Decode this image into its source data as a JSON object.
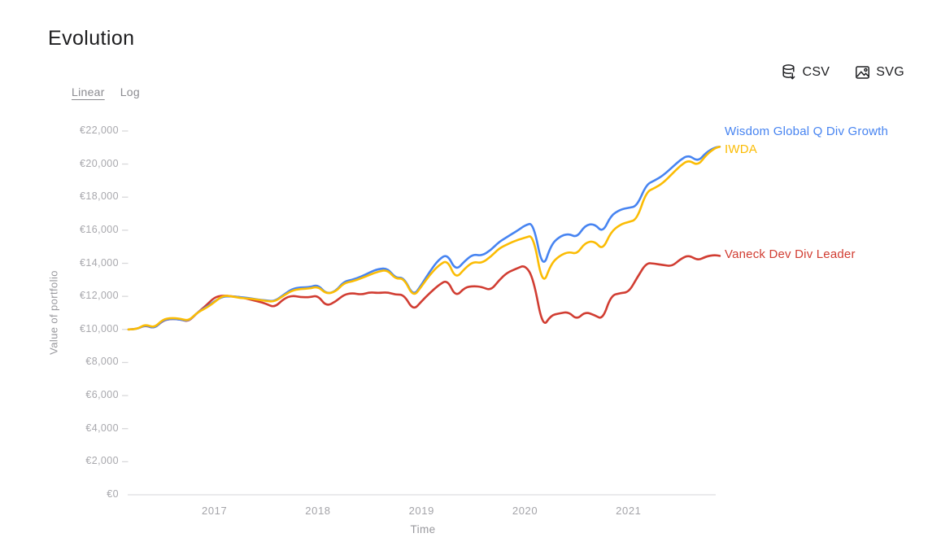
{
  "page": {
    "title": "Evolution"
  },
  "toolbar": {
    "csv": {
      "label": "CSV"
    },
    "svg": {
      "label": "SVG"
    }
  },
  "scale_toggle": {
    "options": [
      {
        "label": "Linear",
        "active": true
      },
      {
        "label": "Log",
        "active": false
      }
    ]
  },
  "chart_data": {
    "type": "line",
    "title": "Evolution",
    "xlabel": "Time",
    "ylabel": "Value of portfolio",
    "currency": "EUR",
    "xlim": [
      2016.17,
      2021.92
    ],
    "ylim": [
      0,
      22000
    ],
    "grid": false,
    "legend_position": "end-of-line",
    "x_axis": {
      "ticks": [
        2017,
        2018,
        2019,
        2020,
        2021
      ]
    },
    "y_axis": {
      "ticks": [
        {
          "value": 0,
          "label": "€0"
        },
        {
          "value": 2000,
          "label": "€2,000"
        },
        {
          "value": 4000,
          "label": "€4,000"
        },
        {
          "value": 6000,
          "label": "€6,000"
        },
        {
          "value": 8000,
          "label": "€8,000"
        },
        {
          "value": 10000,
          "label": "€10,000"
        },
        {
          "value": 12000,
          "label": "€12,000"
        },
        {
          "value": 14000,
          "label": "€14,000"
        },
        {
          "value": 16000,
          "label": "€16,000"
        },
        {
          "value": 18000,
          "label": "€18,000"
        },
        {
          "value": 20000,
          "label": "€20,000"
        },
        {
          "value": 22000,
          "label": "€22,000"
        }
      ]
    },
    "x": [
      2016.17,
      2016.25,
      2016.33,
      2016.42,
      2016.5,
      2016.58,
      2016.67,
      2016.75,
      2016.83,
      2016.92,
      2017,
      2017.08,
      2017.17,
      2017.25,
      2017.33,
      2017.42,
      2017.5,
      2017.58,
      2017.67,
      2017.75,
      2017.83,
      2017.92,
      2018,
      2018.08,
      2018.17,
      2018.25,
      2018.33,
      2018.42,
      2018.5,
      2018.58,
      2018.67,
      2018.75,
      2018.83,
      2018.92,
      2019,
      2019.08,
      2019.17,
      2019.25,
      2019.33,
      2019.42,
      2019.5,
      2019.58,
      2019.67,
      2019.75,
      2019.83,
      2019.92,
      2020,
      2020.08,
      2020.17,
      2020.25,
      2020.33,
      2020.42,
      2020.5,
      2020.58,
      2020.67,
      2020.75,
      2020.83,
      2020.92,
      2021,
      2021.08,
      2021.17,
      2021.25,
      2021.33,
      2021.42,
      2021.5,
      2021.58,
      2021.67,
      2021.75,
      2021.83,
      2021.88
    ],
    "series": [
      {
        "name": "Vaneck Dev Div Leader",
        "color": "#d13d32",
        "values": [
          10000,
          10020,
          10250,
          10060,
          10530,
          10650,
          10600,
          10470,
          10980,
          11450,
          11950,
          12050,
          12000,
          11950,
          11830,
          11700,
          11550,
          11330,
          11850,
          12050,
          11950,
          11950,
          12050,
          11400,
          11680,
          12100,
          12200,
          12100,
          12250,
          12200,
          12250,
          12100,
          12100,
          11150,
          11700,
          12200,
          12700,
          13000,
          11960,
          12550,
          12620,
          12580,
          12350,
          12980,
          13450,
          13680,
          13900,
          13100,
          10100,
          10850,
          10970,
          11070,
          10600,
          11070,
          10870,
          10600,
          12050,
          12200,
          12250,
          13100,
          14020,
          13980,
          13900,
          13820,
          14250,
          14500,
          14170,
          14420,
          14500,
          14450
        ]
      },
      {
        "name": "Wisdom Global Q Div Growth",
        "color": "#4784f1",
        "values": [
          10000,
          10000,
          10280,
          10050,
          10550,
          10650,
          10600,
          10500,
          11000,
          11350,
          11700,
          12000,
          12000,
          11950,
          11900,
          11800,
          11750,
          11700,
          12100,
          12450,
          12550,
          12550,
          12700,
          12150,
          12300,
          12900,
          13000,
          13200,
          13450,
          13650,
          13700,
          13100,
          13150,
          12000,
          12700,
          13500,
          14250,
          14550,
          13550,
          14150,
          14550,
          14450,
          14800,
          15300,
          15600,
          15950,
          16300,
          16450,
          13600,
          15100,
          15600,
          15800,
          15550,
          16300,
          16400,
          15850,
          16900,
          17250,
          17350,
          17450,
          18750,
          19000,
          19300,
          19800,
          20250,
          20550,
          20150,
          20700,
          21000,
          21050
        ]
      },
      {
        "name": "IWDA",
        "color": "#fbbc04",
        "values": [
          10000,
          10000,
          10320,
          10100,
          10600,
          10700,
          10650,
          10520,
          11000,
          11300,
          11650,
          12050,
          12000,
          11900,
          11870,
          11800,
          11720,
          11680,
          12050,
          12350,
          12450,
          12470,
          12600,
          12150,
          12280,
          12800,
          12900,
          13100,
          13300,
          13500,
          13600,
          13050,
          13100,
          11950,
          12600,
          13300,
          13900,
          14200,
          13050,
          13700,
          14100,
          14000,
          14400,
          14900,
          15150,
          15400,
          15550,
          15700,
          12600,
          13950,
          14450,
          14700,
          14550,
          15250,
          15350,
          14800,
          15900,
          16350,
          16500,
          16650,
          18300,
          18550,
          18850,
          19400,
          19900,
          20250,
          19900,
          20550,
          20950,
          21050
        ]
      }
    ]
  }
}
